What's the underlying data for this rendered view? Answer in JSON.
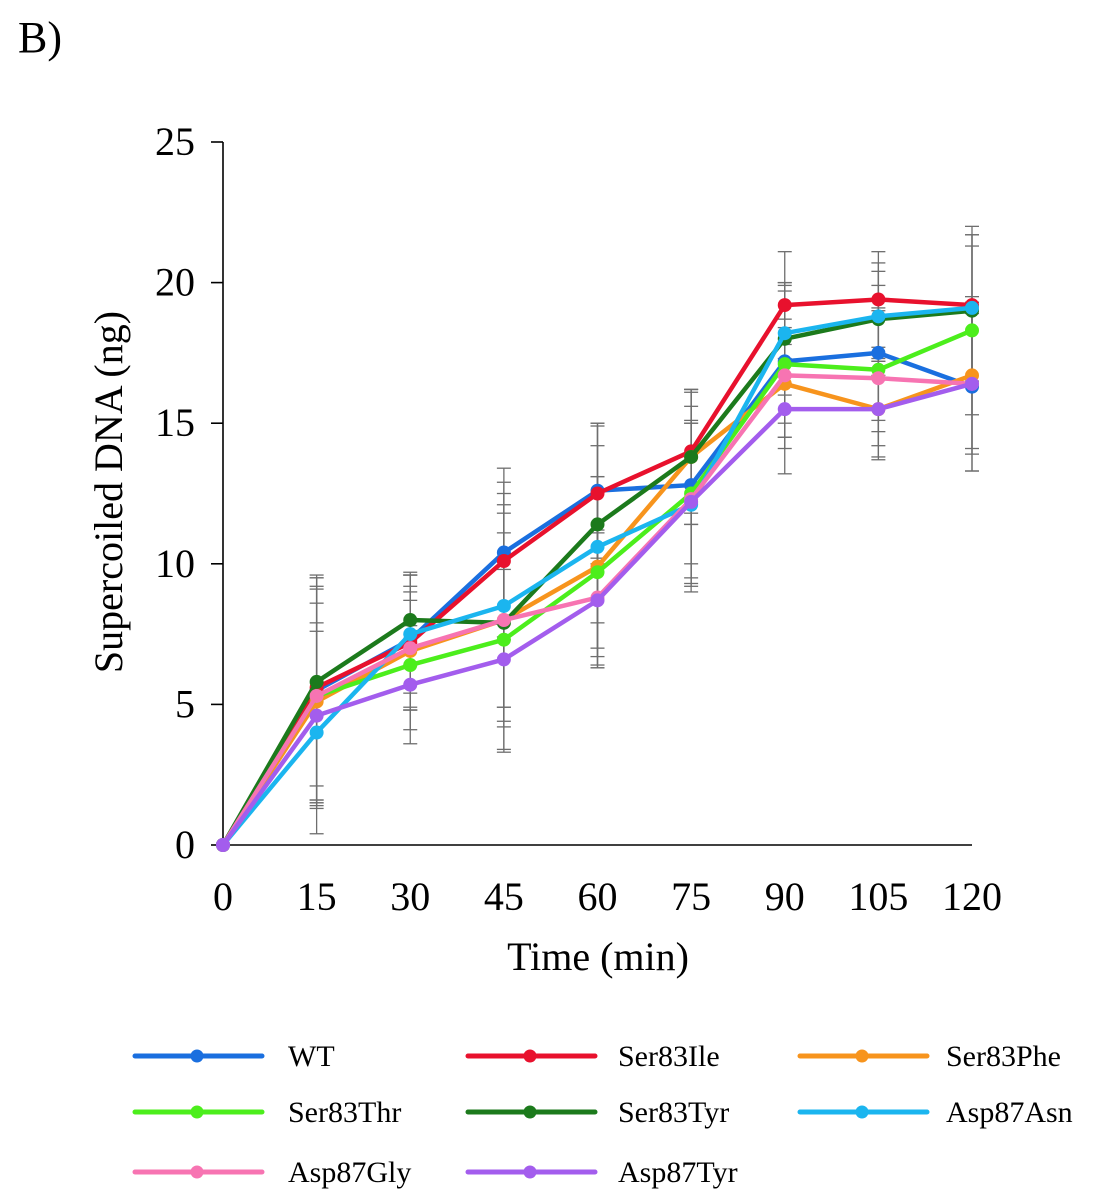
{
  "panel_label": "B)",
  "chart_data": {
    "type": "line",
    "title": "",
    "xlabel": "Time (min)",
    "ylabel": "Supercoiled DNA (ng)",
    "x": [
      0,
      15,
      30,
      45,
      60,
      75,
      90,
      105,
      120
    ],
    "x_tick_labels": [
      "0",
      "15",
      "30",
      "45",
      "60",
      "75",
      "90",
      "105",
      "120"
    ],
    "y_ticks": [
      0,
      5,
      10,
      15,
      20,
      25
    ],
    "y_tick_labels": [
      "0",
      "5",
      "10",
      "15",
      "20",
      "25"
    ],
    "ylim": [
      0,
      25
    ],
    "xlim": [
      0,
      120
    ],
    "grid": false,
    "legend_position": "bottom",
    "error_bars": true,
    "series": [
      {
        "name": "WT",
        "color": "#1a6fdf",
        "values": [
          0,
          5.5,
          7.3,
          10.4,
          12.6,
          12.8,
          17.2,
          17.5,
          16.3
        ],
        "errors": [
          0,
          4.0,
          2.4,
          3.0,
          2.4,
          3.3,
          2.7,
          2.4,
          3.0
        ]
      },
      {
        "name": "Ser83Ile",
        "color": "#e8112d",
        "values": [
          0,
          5.6,
          7.2,
          10.1,
          12.5,
          14.0,
          19.2,
          19.4,
          19.2
        ],
        "errors": [
          0,
          4.0,
          2.4,
          2.8,
          2.5,
          2.2,
          1.9,
          1.7,
          2.8
        ]
      },
      {
        "name": "Ser83Phe",
        "color": "#f7941d",
        "values": [
          0,
          5.1,
          6.9,
          8.0,
          9.9,
          13.8,
          16.4,
          15.5,
          16.7
        ],
        "errors": [
          0,
          3.5,
          2.1,
          3.8,
          3.2,
          2.4,
          2.3,
          1.7,
          2.6
        ]
      },
      {
        "name": "Ser83Thr",
        "color": "#4cee1c",
        "values": [
          0,
          5.3,
          6.4,
          7.3,
          9.7,
          12.5,
          17.1,
          16.9,
          18.3
        ],
        "errors": [
          0,
          3.9,
          2.3,
          2.9,
          3.4,
          2.5,
          2.6,
          2.2,
          3.0
        ]
      },
      {
        "name": "Ser83Tyr",
        "color": "#1c7a1c",
        "values": [
          0,
          5.8,
          8.0,
          7.9,
          11.4,
          13.8,
          18.0,
          18.7,
          19.0
        ],
        "errors": [
          0,
          3.7,
          1.6,
          4.6,
          3.5,
          2.4,
          2.0,
          2.0,
          2.7
        ]
      },
      {
        "name": "Asp87Asn",
        "color": "#1bb5ef",
        "values": [
          0,
          4.0,
          7.5,
          8.5,
          10.6,
          12.1,
          18.2,
          18.8,
          19.1
        ],
        "errors": [
          0,
          3.6,
          2.1,
          3.6,
          3.6,
          2.9,
          1.8,
          1.6,
          2.6
        ]
      },
      {
        "name": "Asp87Gly",
        "color": "#f774b2",
        "values": [
          0,
          5.3,
          7.0,
          8.0,
          8.8,
          12.3,
          16.7,
          16.6,
          16.4
        ],
        "errors": [
          0,
          3.8,
          2.2,
          3.1,
          2.4,
          3.3,
          1.7,
          2.4,
          2.5
        ]
      },
      {
        "name": "Asp87Tyr",
        "color": "#a35ded",
        "values": [
          0,
          4.6,
          5.7,
          6.6,
          8.7,
          12.2,
          15.5,
          15.5,
          16.4
        ],
        "errors": [
          0,
          3.3,
          2.1,
          3.2,
          2.4,
          2.9,
          2.3,
          1.8,
          3.1
        ]
      }
    ]
  }
}
